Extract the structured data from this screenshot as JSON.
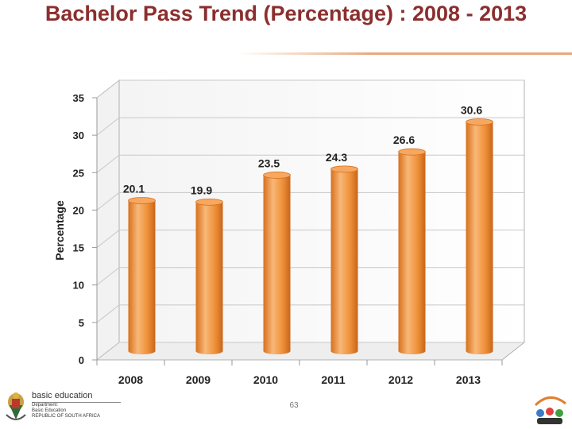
{
  "slide": {
    "title": "Bachelor Pass Trend (Percentage) : 2008 - 2013",
    "page_number": "63"
  },
  "footer": {
    "department_main": "basic education",
    "department_sub1": "Department:",
    "department_sub2": "Basic Education",
    "department_sub3": "REPUBLIC OF SOUTH AFRICA",
    "logo_icon": "coat-of-arms-icon",
    "anniversary_icon": "anniversary-logo-icon"
  },
  "colors": {
    "bar": "#f0913a",
    "bar_light": "#f8b878",
    "bar_dark": "#d8701c",
    "title": "#8b2e2e",
    "grid": "#c8c8c8"
  },
  "chart_data": {
    "type": "bar",
    "categories": [
      "2008",
      "2009",
      "2010",
      "2011",
      "2012",
      "2013"
    ],
    "values": [
      20.1,
      19.9,
      23.5,
      24.3,
      26.6,
      30.6
    ],
    "data_labels": [
      "20.1",
      "19.9",
      "23.5",
      "24.3",
      "26.6",
      "30.6"
    ],
    "title": "",
    "xlabel": "",
    "ylabel": "Percentage",
    "ylim": [
      0,
      35
    ],
    "yticks": [
      0,
      5,
      10,
      15,
      20,
      25,
      30,
      35
    ],
    "grid": true,
    "legend": "none",
    "style": "3d-cylinder"
  }
}
